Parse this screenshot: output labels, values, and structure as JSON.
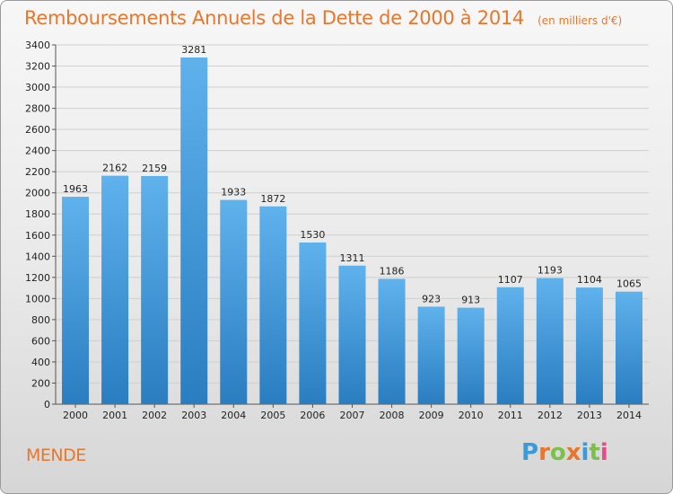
{
  "title": "Remboursements Annuels de la Dette de 2000 à 2014",
  "subtitle": "(en milliers d'€)",
  "commune": "MENDE",
  "brand": {
    "letters": [
      "P",
      "r",
      "o",
      "x",
      "i",
      "t",
      "i"
    ],
    "colors": [
      "#3a9bd9",
      "#e8772d",
      "#7cc04a",
      "#e8772d",
      "#3a9bd9",
      "#7cc04a",
      "#e84a8a"
    ]
  },
  "colors": {
    "title": "#e8772d",
    "bar_top": "#5fb2ec",
    "bar_bottom": "#2a7dc0"
  },
  "chart_data": {
    "type": "bar",
    "categories": [
      "2000",
      "2001",
      "2002",
      "2003",
      "2004",
      "2005",
      "2006",
      "2007",
      "2008",
      "2009",
      "2010",
      "2011",
      "2012",
      "2013",
      "2014"
    ],
    "values": [
      1963,
      2162,
      2159,
      3281,
      1933,
      1872,
      1530,
      1311,
      1186,
      923,
      913,
      1107,
      1193,
      1104,
      1065
    ],
    "ylim": [
      0,
      3400
    ],
    "yticks": [
      0,
      200,
      400,
      600,
      800,
      1000,
      1200,
      1400,
      1600,
      1800,
      2000,
      2200,
      2400,
      2600,
      2800,
      3000,
      3200,
      3400
    ],
    "grid": true
  }
}
